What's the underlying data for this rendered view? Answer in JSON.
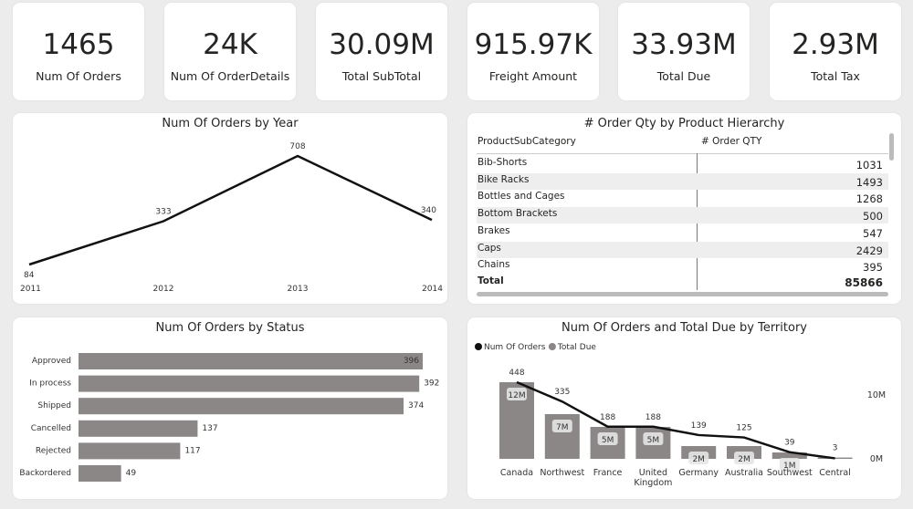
{
  "cards": [
    {
      "value": "1465",
      "label": "Num Of Orders"
    },
    {
      "value": "24K",
      "label": "Num Of OrderDetails"
    },
    {
      "value": "30.09M",
      "label": "Total SubTotal"
    },
    {
      "value": "915.97K",
      "label": "Freight Amount"
    },
    {
      "value": "33.93M",
      "label": "Total Due"
    },
    {
      "value": "2.93M",
      "label": "Total Tax"
    }
  ],
  "chart_data": [
    {
      "type": "line",
      "title": "Num Of Orders by Year",
      "categories": [
        "2011",
        "2012",
        "2013",
        "2014"
      ],
      "values": [
        84,
        333,
        708,
        340
      ],
      "color": "#111111"
    },
    {
      "type": "bar",
      "orientation": "horizontal",
      "title": "Num Of Orders by Status",
      "categories": [
        "Approved",
        "In process",
        "Shipped",
        "Cancelled",
        "Rejected",
        "Backordered"
      ],
      "values": [
        396,
        392,
        374,
        137,
        117,
        49
      ],
      "color": "#8c8787"
    },
    {
      "type": "combo",
      "title": "Num Of Orders and Total Due by Territory",
      "legend": "top-left",
      "categories": [
        "Canada",
        "Northwest",
        "France",
        "United Kingdom",
        "Germany",
        "Australia",
        "Southwest",
        "Central"
      ],
      "series": [
        {
          "name": "Num Of Orders",
          "type": "line",
          "color": "#111111",
          "values": [
            448,
            335,
            188,
            188,
            139,
            125,
            39,
            3
          ]
        },
        {
          "name": "Total Due",
          "type": "bar",
          "axis": "y2",
          "color": "#8c8787",
          "values": [
            12,
            7,
            5,
            5,
            2,
            2,
            1,
            0.2
          ],
          "value_labels": [
            "12M",
            "7M",
            "5M",
            "5M",
            "2M",
            "2M",
            "1M",
            null
          ]
        }
      ],
      "y2lim": [
        0,
        15
      ],
      "y2ticks": [
        {
          "value": 0,
          "label": "0M"
        },
        {
          "value": 10,
          "label": "10M"
        }
      ]
    }
  ],
  "table": {
    "title": "# Order Qty by Product Hierarchy",
    "headers": [
      "ProductSubCategory",
      "# Order QTY"
    ],
    "rows": [
      [
        "Bib-Shorts",
        1031
      ],
      [
        "Bike Racks",
        1493
      ],
      [
        "Bottles and Cages",
        1268
      ],
      [
        "Bottom Brackets",
        500
      ],
      [
        "Brakes",
        547
      ],
      [
        "Caps",
        2429
      ],
      [
        "Chains",
        395
      ]
    ],
    "total": [
      "Total",
      85866
    ]
  }
}
